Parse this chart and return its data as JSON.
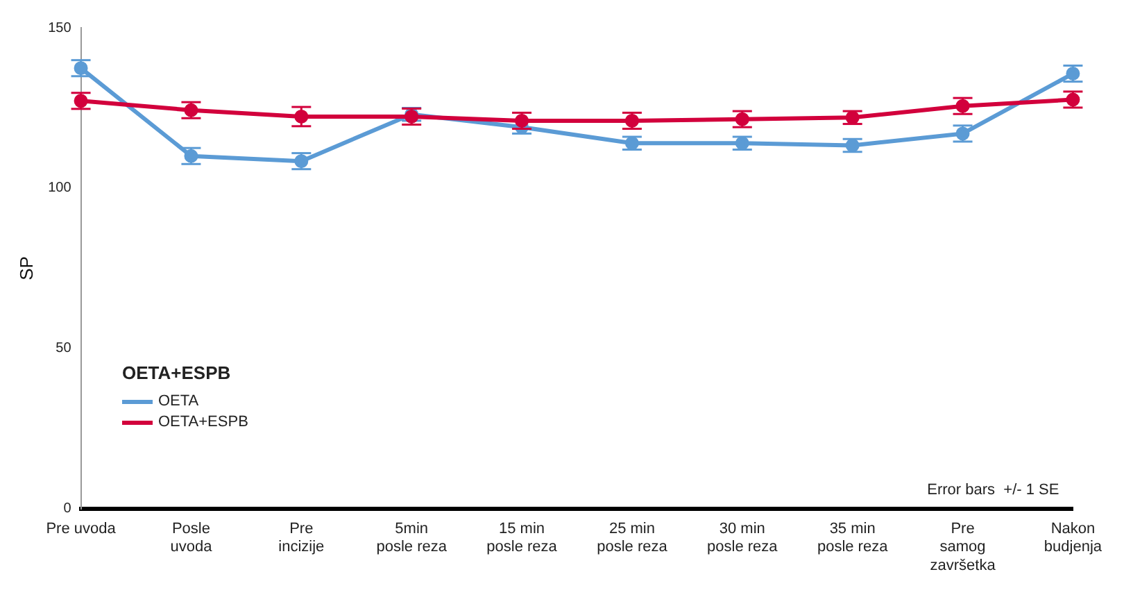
{
  "chart_data": {
    "type": "line",
    "ylabel": "SP",
    "legend_title": "OETA+ESPB",
    "legend": "bottom left",
    "marker": "circle",
    "grid": false,
    "ylim": [
      0,
      150
    ],
    "yticks": [
      0,
      50,
      100,
      150
    ],
    "categories": [
      "Pre uvoda",
      "Posle\nuvoda",
      "Pre\nincizije",
      "5min\nposle reza",
      "15 min\nposle reza",
      "25 min\nposle reza",
      "30 min\nposle reza",
      "35 min\nposle reza",
      "Pre\nsamog\nzavršetka",
      "Nakon\nbudjenja"
    ],
    "series": [
      {
        "name": "OETA",
        "color": "#5b9bd5",
        "values": [
          137.4,
          110,
          108.4,
          123,
          119,
          114,
          114,
          113.3,
          117,
          135.7
        ],
        "errors": [
          2.5,
          2.5,
          2.5,
          2,
          2,
          2,
          2,
          2,
          2.5,
          2.5
        ]
      },
      {
        "name": "OETA+ESPB",
        "color": "#d2003c",
        "values": [
          127.2,
          124.3,
          122.3,
          122.3,
          121,
          121,
          121.5,
          122,
          125.6,
          127.6
        ],
        "errors": [
          2.5,
          2.5,
          3,
          2.5,
          2.5,
          2.5,
          2.5,
          2,
          2.5,
          2.5
        ]
      }
    ],
    "annotations": [
      "Error bars  +/- 1 SE"
    ]
  }
}
